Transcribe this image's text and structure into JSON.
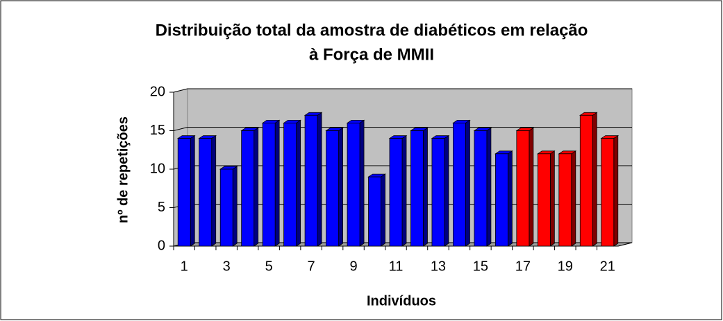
{
  "chart_data": {
    "type": "bar3d",
    "title": [
      "Distribuição total da amostra de diabéticos em relação",
      "à Força de MMII"
    ],
    "x_label": "Indivíduos",
    "y_label": "nº de repetições",
    "categories": [
      1,
      null,
      3,
      null,
      5,
      null,
      7,
      null,
      9,
      null,
      11,
      null,
      13,
      null,
      15,
      null,
      17,
      null,
      19,
      null,
      21
    ],
    "values": [
      14,
      14,
      10,
      15,
      16,
      16,
      17,
      15,
      16,
      9,
      14,
      15,
      14,
      16,
      15,
      12,
      15,
      12,
      12,
      17,
      14
    ],
    "colors": [
      "#0000ff",
      "#0000ff",
      "#0000ff",
      "#0000ff",
      "#0000ff",
      "#0000ff",
      "#0000ff",
      "#0000ff",
      "#0000ff",
      "#0000ff",
      "#0000ff",
      "#0000ff",
      "#0000ff",
      "#0000ff",
      "#0000ff",
      "#0000ff",
      "#ff0000",
      "#ff0000",
      "#ff0000",
      "#ff0000",
      "#ff0000"
    ],
    "ylim": [
      0,
      20
    ],
    "yticks": [
      0,
      5,
      10,
      15,
      20
    ],
    "grid": true
  }
}
